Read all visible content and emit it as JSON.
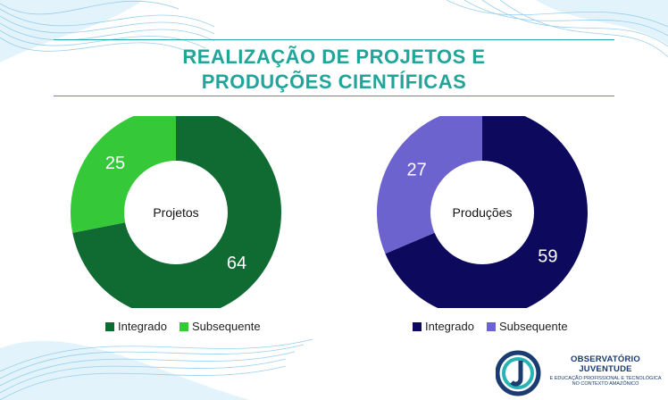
{
  "title": {
    "line1": "REALIZAÇÃO DE PROJETOS E",
    "line2": "PRODUÇÕES CIENTÍFICAS"
  },
  "colors": {
    "title": "#21a59a",
    "projetos_integrado": "#0f6b31",
    "projetos_subsequente": "#35c93a",
    "producoes_integrado": "#0d0a5e",
    "producoes_subsequente": "#6c63cf"
  },
  "chart_data": [
    {
      "type": "pie",
      "center_label": "Projetos",
      "categories": [
        "Integrado",
        "Subsequente"
      ],
      "values": [
        64,
        25
      ],
      "colors": [
        "#0f6b31",
        "#35c93a"
      ],
      "legend": "bottom"
    },
    {
      "type": "pie",
      "center_label": "Produções",
      "categories": [
        "Integrado",
        "Subsequente"
      ],
      "values": [
        59,
        27
      ],
      "colors": [
        "#0d0a5e",
        "#6c63cf"
      ],
      "legend": "bottom"
    }
  ],
  "logo": {
    "line1": "OBSERVATÓRIO JUVENTUDE",
    "line2": "E EDUCAÇÃO PROFISSIONAL E TECNOLÓGICA",
    "line3": "NO CONTEXTO AMAZÔNICO"
  }
}
